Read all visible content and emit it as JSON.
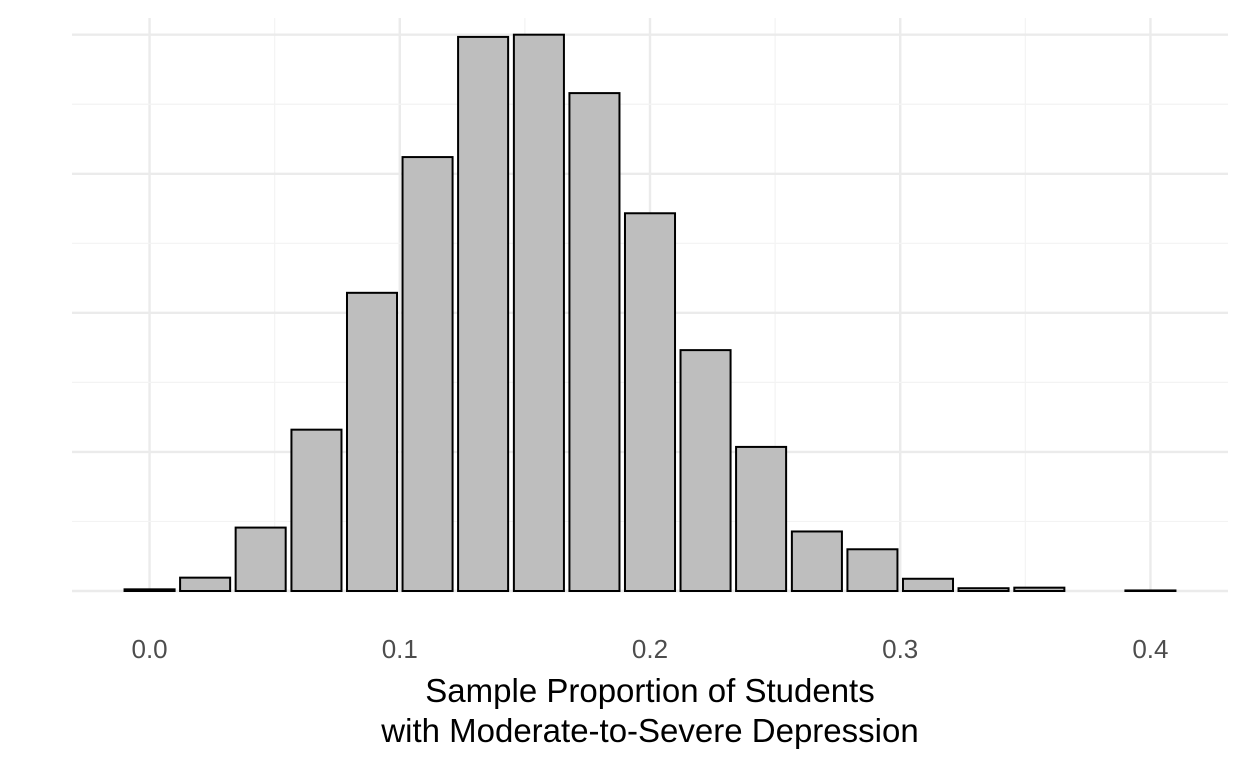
{
  "chart_data": {
    "type": "bar",
    "xlabel_lines": [
      "Sample Proportion of Students",
      "with Moderate-to-Severe Depression"
    ],
    "ylabel": "",
    "x_ticks": [
      "0.0",
      "0.1",
      "0.2",
      "0.3",
      "0.4"
    ],
    "x_tick_values": [
      0.0,
      0.1,
      0.2,
      0.3,
      0.4
    ],
    "xlim": [
      -0.031,
      0.431
    ],
    "ylim": [
      0,
      1.03
    ],
    "y_tick_labels_shown": false,
    "grid": true,
    "bar_fill": "#bebebe",
    "bar_outline": "#000000",
    "bar_width": 0.02,
    "x": [
      0.0,
      0.0222,
      0.0444,
      0.0667,
      0.0889,
      0.1111,
      0.1333,
      0.1556,
      0.1778,
      0.2,
      0.2222,
      0.2444,
      0.2667,
      0.2889,
      0.3111,
      0.3333,
      0.3556,
      0.4
    ],
    "values": [
      0.003,
      0.024,
      0.114,
      0.29,
      0.536,
      0.78,
      0.996,
      1.0,
      0.895,
      0.679,
      0.433,
      0.259,
      0.107,
      0.075,
      0.022,
      0.005,
      0.006,
      0.001
    ]
  }
}
